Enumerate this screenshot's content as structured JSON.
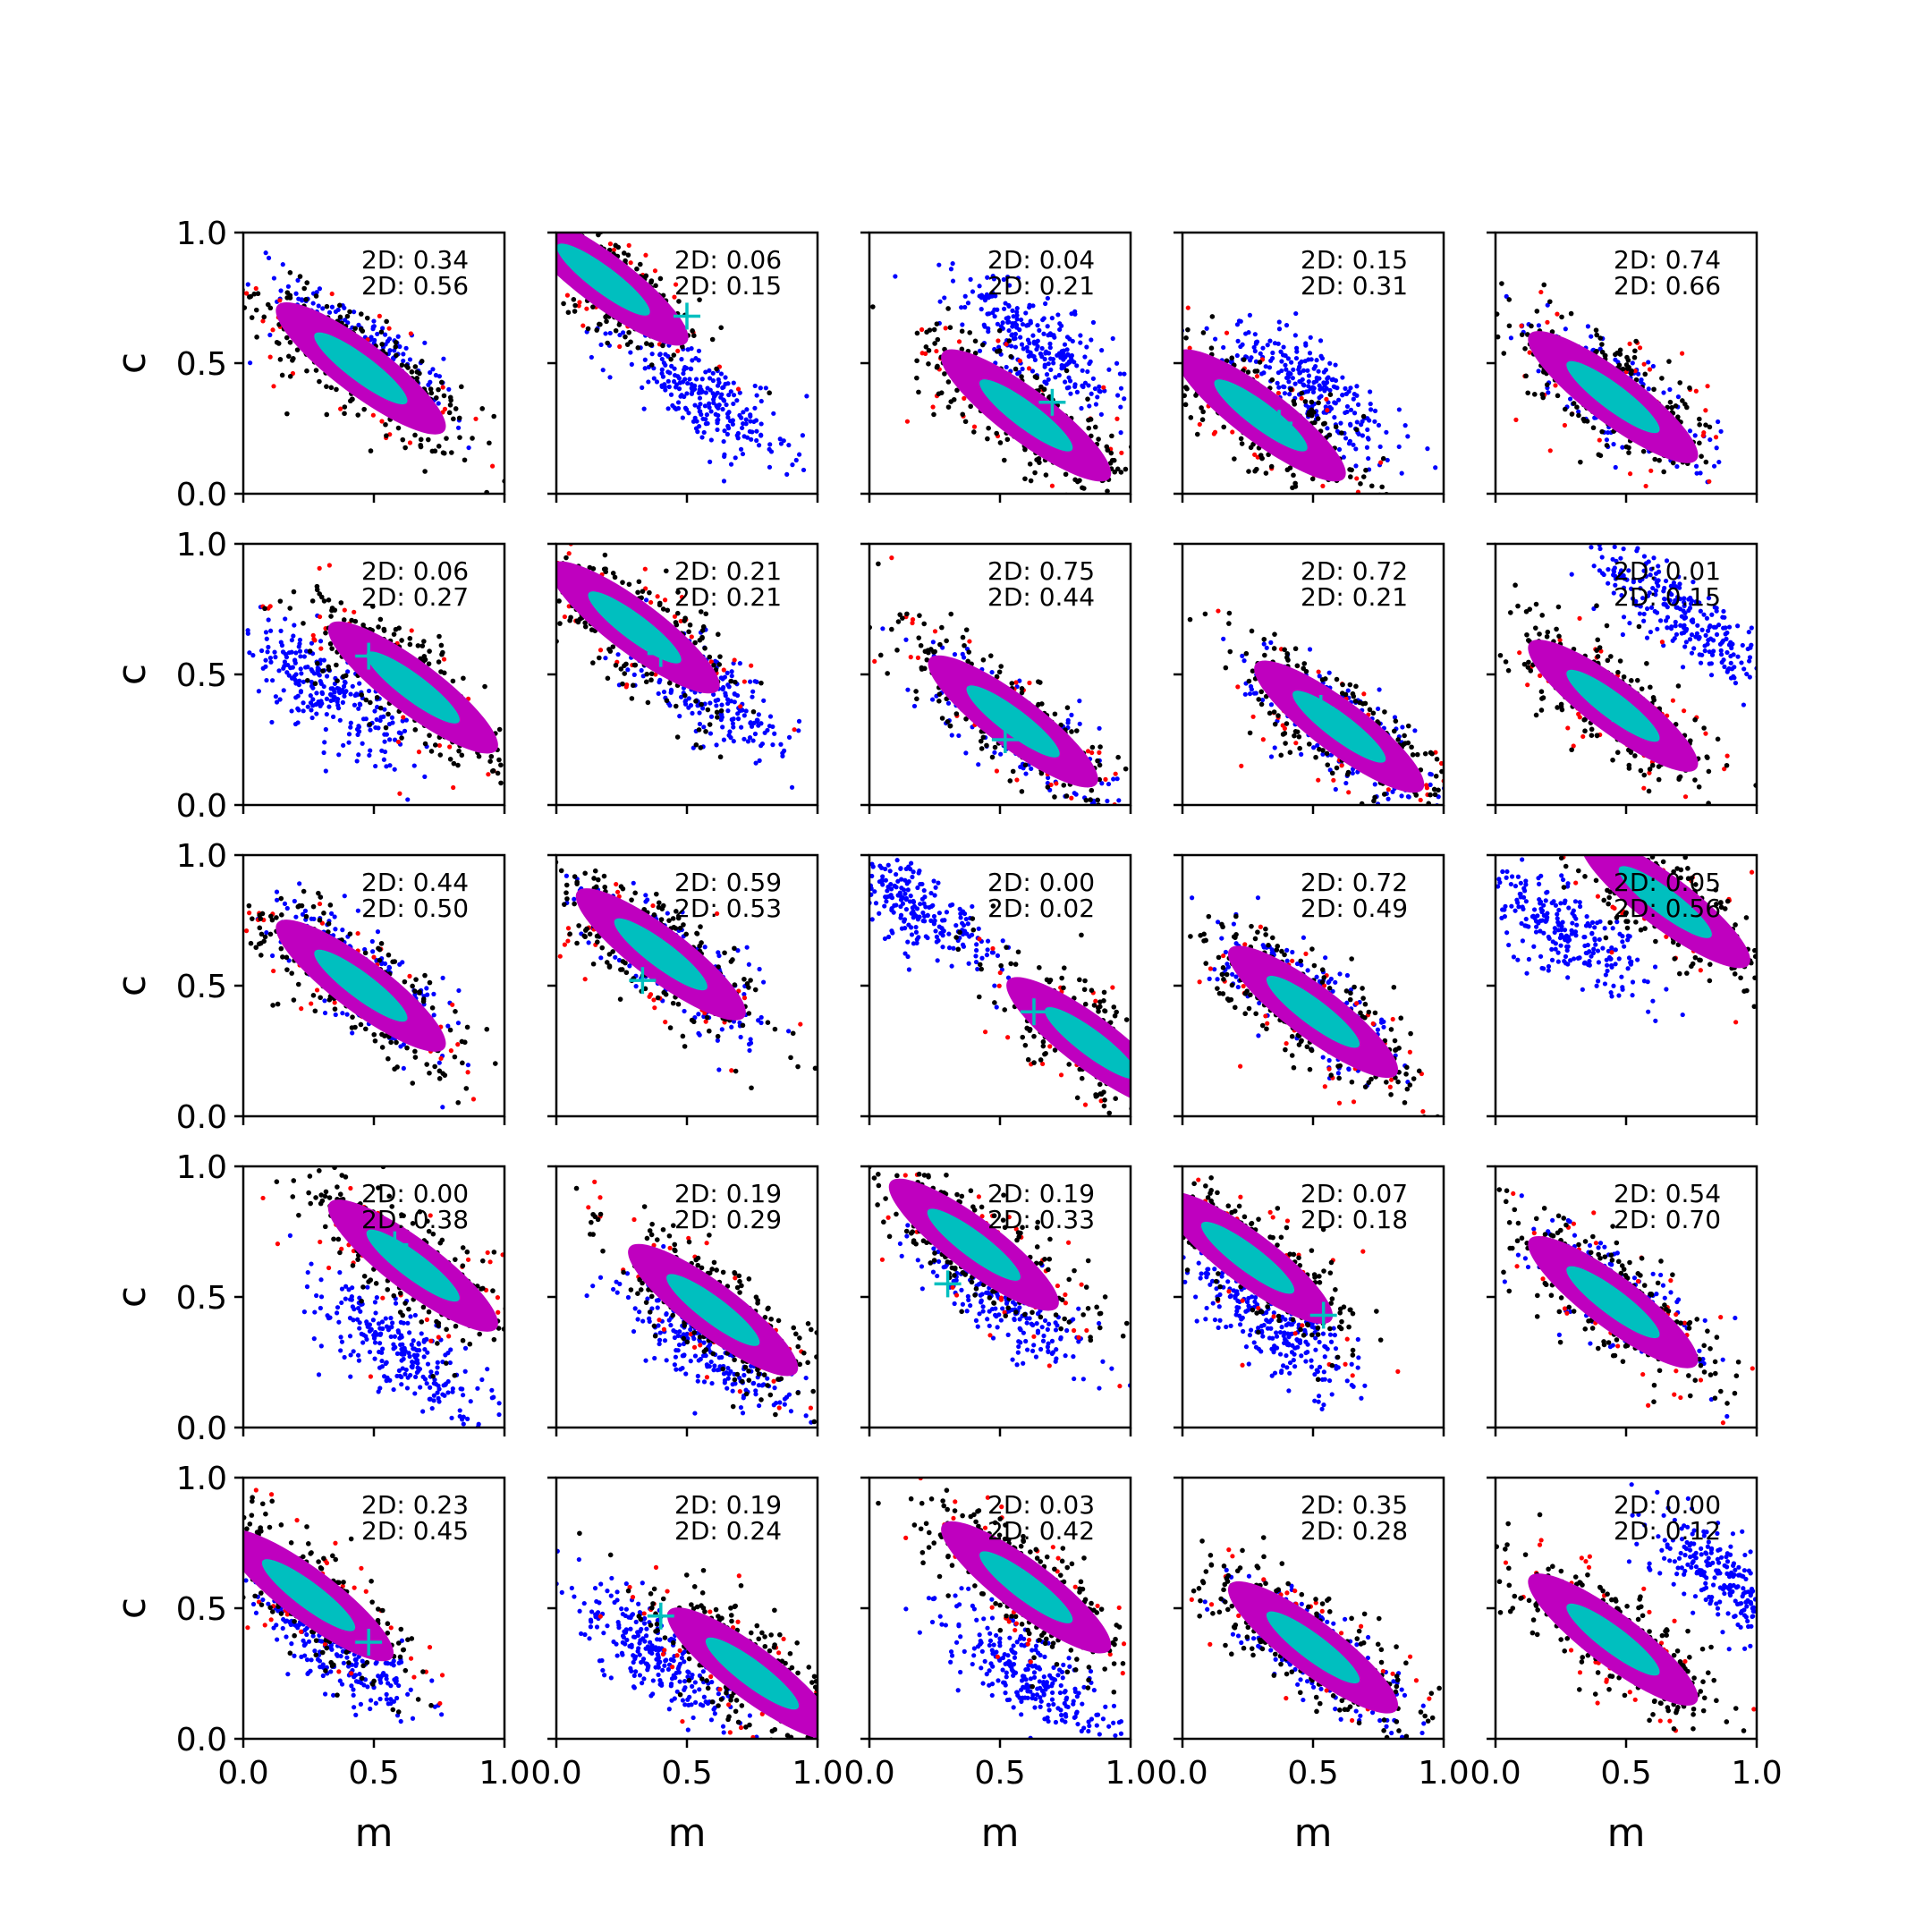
{
  "figure": {
    "background": "#ffffff",
    "grid": {
      "rows": 5,
      "cols": 5,
      "sharex": true,
      "sharey": true
    }
  },
  "colors": {
    "sample_a": "#0000ff",
    "sample_b": "#ff0000",
    "sample_b_core": "#000000",
    "overlap": "#bf00bf",
    "overlap_core": "#00bfbf",
    "marker": "#00bfbf"
  },
  "chart_data": {
    "type": "scatter",
    "xlabel": "m",
    "ylabel": "c",
    "xlim": [
      0,
      1
    ],
    "ylim": [
      0,
      1
    ],
    "xticks": [
      "0.0",
      "0.5",
      "1.0"
    ],
    "yticks": [
      "0.0",
      "0.5",
      "1.0"
    ],
    "panels": [
      {
        "row": 0,
        "col": 0,
        "annotations": [
          "2D: 0.34",
          "2D: 0.56"
        ],
        "marker": null,
        "blue": {
          "center": [
            0.45,
            0.55
          ]
        },
        "red": {
          "center": [
            0.45,
            0.48
          ]
        }
      },
      {
        "row": 0,
        "col": 1,
        "annotations": [
          "2D: 0.06",
          "2D: 0.15"
        ],
        "marker": [
          0.5,
          0.68
        ],
        "blue": {
          "center": [
            0.55,
            0.38
          ]
        },
        "red": {
          "center": [
            0.18,
            0.82
          ]
        }
      },
      {
        "row": 0,
        "col": 2,
        "annotations": [
          "2D: 0.04",
          "2D: 0.21"
        ],
        "marker": [
          0.7,
          0.35
        ],
        "blue": {
          "center": [
            0.65,
            0.58
          ]
        },
        "red": {
          "center": [
            0.6,
            0.3
          ]
        }
      },
      {
        "row": 0,
        "col": 3,
        "annotations": [
          "2D: 0.15",
          "2D: 0.31"
        ],
        "marker": [
          0.37,
          0.27
        ],
        "blue": {
          "center": [
            0.5,
            0.4
          ]
        },
        "red": {
          "center": [
            0.3,
            0.3
          ]
        }
      },
      {
        "row": 0,
        "col": 4,
        "annotations": [
          "2D: 0.74",
          "2D: 0.66"
        ],
        "marker": null,
        "blue": {
          "center": [
            0.45,
            0.38
          ]
        },
        "red": {
          "center": [
            0.45,
            0.37
          ]
        }
      },
      {
        "row": 1,
        "col": 0,
        "annotations": [
          "2D: 0.06",
          "2D: 0.27"
        ],
        "marker": [
          0.48,
          0.57
        ],
        "blue": {
          "center": [
            0.3,
            0.45
          ]
        },
        "red": {
          "center": [
            0.65,
            0.45
          ]
        }
      },
      {
        "row": 1,
        "col": 1,
        "annotations": [
          "2D: 0.21",
          "2D: 0.21"
        ],
        "marker": [
          0.4,
          0.58
        ],
        "blue": {
          "center": [
            0.55,
            0.45
          ]
        },
        "red": {
          "center": [
            0.3,
            0.68
          ]
        }
      },
      {
        "row": 1,
        "col": 2,
        "annotations": [
          "2D: 0.75",
          "2D: 0.44"
        ],
        "marker": [
          0.52,
          0.25
        ],
        "blue": {
          "center": [
            0.55,
            0.3
          ]
        },
        "red": {
          "center": [
            0.55,
            0.32
          ]
        }
      },
      {
        "row": 1,
        "col": 3,
        "annotations": [
          "2D: 0.72",
          "2D: 0.21"
        ],
        "marker": [
          0.53,
          0.37
        ],
        "blue": {
          "center": [
            0.6,
            0.3
          ]
        },
        "red": {
          "center": [
            0.6,
            0.3
          ]
        }
      },
      {
        "row": 1,
        "col": 4,
        "annotations": [
          "2D: 0.01",
          "2D: 0.15"
        ],
        "marker": [
          0.45,
          0.37
        ],
        "blue": {
          "center": [
            0.72,
            0.72
          ]
        },
        "red": {
          "center": [
            0.45,
            0.38
          ]
        }
      },
      {
        "row": 2,
        "col": 0,
        "annotations": [
          "2D: 0.44",
          "2D: 0.50"
        ],
        "marker": null,
        "blue": {
          "center": [
            0.45,
            0.52
          ]
        },
        "red": {
          "center": [
            0.45,
            0.5
          ]
        }
      },
      {
        "row": 2,
        "col": 1,
        "annotations": [
          "2D: 0.59",
          "2D: 0.53"
        ],
        "marker": [
          0.33,
          0.52
        ],
        "blue": {
          "center": [
            0.45,
            0.58
          ]
        },
        "red": {
          "center": [
            0.4,
            0.62
          ]
        }
      },
      {
        "row": 2,
        "col": 2,
        "annotations": [
          "2D: 0.00",
          "2D: 0.02"
        ],
        "marker": [
          0.63,
          0.4
        ],
        "blue": {
          "center": [
            0.15,
            0.82
          ]
        },
        "red": {
          "center": [
            0.85,
            0.28
          ]
        }
      },
      {
        "row": 2,
        "col": 3,
        "annotations": [
          "2D: 0.72",
          "2D: 0.49"
        ],
        "marker": null,
        "blue": {
          "center": [
            0.5,
            0.4
          ]
        },
        "red": {
          "center": [
            0.5,
            0.4
          ]
        }
      },
      {
        "row": 2,
        "col": 4,
        "annotations": [
          "2D: 0.05",
          "2D: 0.56"
        ],
        "marker": null,
        "blue": {
          "center": [
            0.25,
            0.72
          ]
        },
        "red": {
          "center": [
            0.65,
            0.82
          ]
        }
      },
      {
        "row": 3,
        "col": 0,
        "annotations": [
          "2D: 0.00",
          "2D: 0.38"
        ],
        "marker": [
          0.58,
          0.7
        ],
        "blue": {
          "center": [
            0.62,
            0.28
          ]
        },
        "red": {
          "center": [
            0.65,
            0.62
          ]
        }
      },
      {
        "row": 3,
        "col": 1,
        "annotations": [
          "2D: 0.19",
          "2D: 0.29"
        ],
        "marker": null,
        "blue": {
          "center": [
            0.6,
            0.3
          ]
        },
        "red": {
          "center": [
            0.6,
            0.45
          ]
        }
      },
      {
        "row": 3,
        "col": 2,
        "annotations": [
          "2D: 0.19",
          "2D: 0.33"
        ],
        "marker": [
          0.3,
          0.55
        ],
        "blue": {
          "center": [
            0.5,
            0.5
          ]
        },
        "red": {
          "center": [
            0.4,
            0.7
          ]
        }
      },
      {
        "row": 3,
        "col": 3,
        "annotations": [
          "2D: 0.07",
          "2D: 0.18"
        ],
        "marker": [
          0.54,
          0.43
        ],
        "blue": {
          "center": [
            0.35,
            0.4
          ]
        },
        "red": {
          "center": [
            0.25,
            0.65
          ]
        }
      },
      {
        "row": 3,
        "col": 4,
        "annotations": [
          "2D: 0.54",
          "2D: 0.70"
        ],
        "marker": null,
        "blue": {
          "center": [
            0.45,
            0.5
          ]
        },
        "red": {
          "center": [
            0.45,
            0.48
          ]
        }
      },
      {
        "row": 4,
        "col": 0,
        "annotations": [
          "2D: 0.23",
          "2D: 0.45"
        ],
        "marker": [
          0.48,
          0.37
        ],
        "blue": {
          "center": [
            0.35,
            0.35
          ]
        },
        "red": {
          "center": [
            0.25,
            0.55
          ]
        }
      },
      {
        "row": 4,
        "col": 1,
        "annotations": [
          "2D: 0.19",
          "2D: 0.24"
        ],
        "marker": [
          0.4,
          0.47
        ],
        "blue": {
          "center": [
            0.4,
            0.3
          ]
        },
        "red": {
          "center": [
            0.75,
            0.25
          ]
        }
      },
      {
        "row": 4,
        "col": 2,
        "annotations": [
          "2D: 0.03",
          "2D: 0.42"
        ],
        "marker": null,
        "blue": {
          "center": [
            0.6,
            0.25
          ]
        },
        "red": {
          "center": [
            0.6,
            0.58
          ]
        }
      },
      {
        "row": 4,
        "col": 3,
        "annotations": [
          "2D: 0.35",
          "2D: 0.28"
        ],
        "marker": null,
        "blue": {
          "center": [
            0.5,
            0.35
          ]
        },
        "red": {
          "center": [
            0.5,
            0.35
          ]
        }
      },
      {
        "row": 4,
        "col": 4,
        "annotations": [
          "2D: 0.00",
          "2D: 0.12"
        ],
        "marker": null,
        "blue": {
          "center": [
            0.9,
            0.6
          ]
        },
        "red": {
          "center": [
            0.45,
            0.38
          ]
        }
      }
    ]
  }
}
